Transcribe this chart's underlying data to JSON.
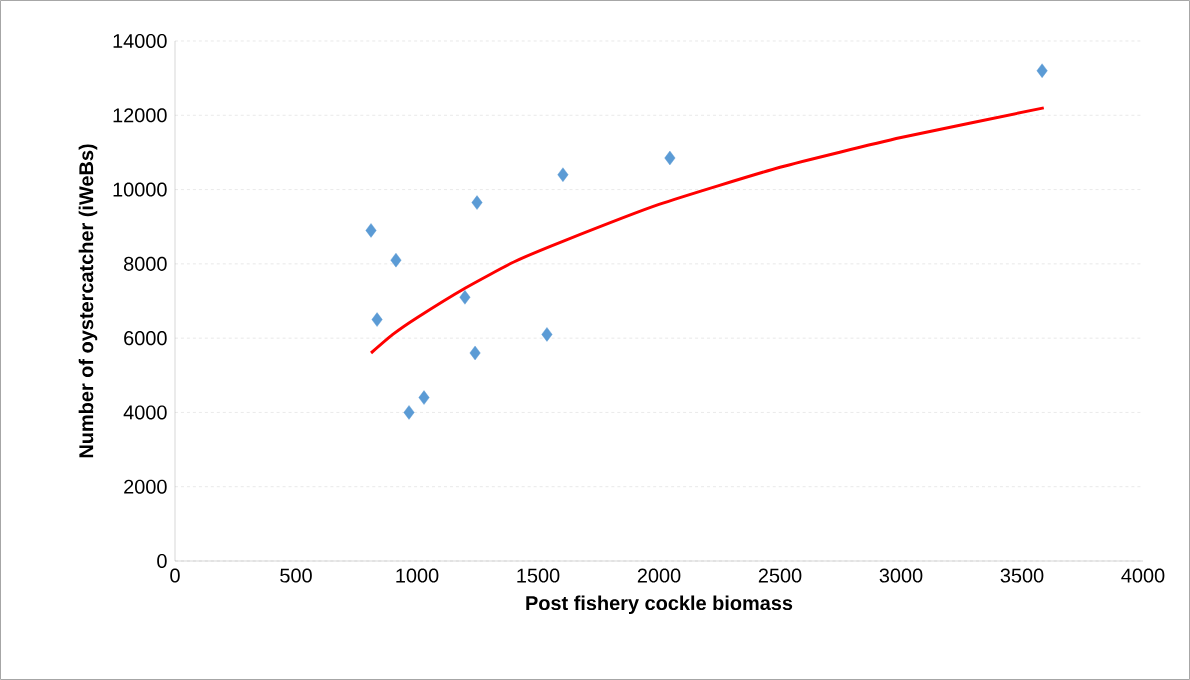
{
  "chart_data": {
    "type": "scatter",
    "xlabel": "Post fishery cockle biomass",
    "ylabel": "Number of oystercatcher (iWeBs)",
    "xlim": [
      0,
      4000
    ],
    "xticks": [
      0,
      500,
      1000,
      1500,
      2000,
      2500,
      3000,
      3500,
      4000
    ],
    "ylim": [
      0,
      14000
    ],
    "yticks": [
      0,
      2000,
      4000,
      6000,
      8000,
      10000,
      12000,
      14000
    ],
    "grid": "y",
    "series": [
      {
        "marker": "diamond",
        "color": "#5b9bd5",
        "x": [
          810,
          835,
          913,
          967,
          1029,
          1198,
          1240,
          1248,
          1537,
          1603,
          2045,
          3583
        ],
        "values": [
          8900,
          6500,
          8100,
          4000,
          4400,
          7100,
          5600,
          9650,
          6100,
          10400,
          10850,
          13200
        ]
      },
      {
        "type": "line",
        "marker": "none",
        "line_style": "solid",
        "color": "#ff0000",
        "x": [
          810,
          900,
          1000,
          1200,
          1400,
          1600,
          2000,
          2500,
          3000,
          3590
        ],
        "values": [
          5600,
          6100,
          6550,
          7350,
          8050,
          8600,
          9600,
          10600,
          11400,
          12200
        ]
      }
    ]
  }
}
